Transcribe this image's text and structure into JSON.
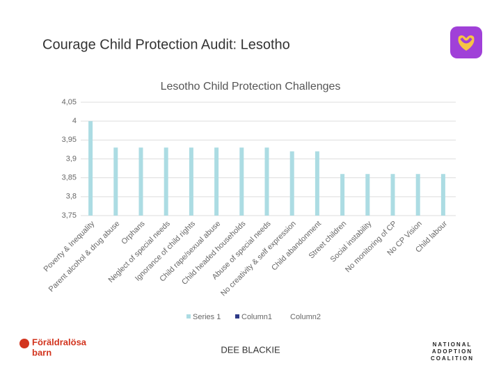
{
  "slide": {
    "title": "Courage Child Protection Audit: Lesotho",
    "footer": "DEE BLACKIE",
    "logo_left": [
      "Föräldralösa",
      "barn"
    ],
    "logo_right": [
      "NATIONAL",
      "ADOPTION",
      "COALITION"
    ]
  },
  "chart_data": {
    "type": "bar",
    "title": "Lesotho Child Protection Challenges",
    "categories": [
      "Poverty & Inequality",
      "Parent alcohol & drug abuse",
      "Orphans",
      "Neglect of special needs",
      "Ignorance of child rights",
      "Child rape/sexual abuse",
      "Child headed households",
      "Abuse of special needs",
      "No creativity & self expression",
      "Child abandonment",
      "Street children",
      "Social instability",
      "No monitoring of CP",
      "No CP Vision",
      "Child labour"
    ],
    "series": [
      {
        "name": "Series 1",
        "color": "#acdce3",
        "values": [
          4,
          3.93,
          3.93,
          3.93,
          3.93,
          3.93,
          3.93,
          3.93,
          3.92,
          3.92,
          3.86,
          3.86,
          3.86,
          3.86,
          3.86
        ]
      },
      {
        "name": "Column1",
        "color": "#2e3a87",
        "values": [
          null,
          null,
          null,
          null,
          null,
          null,
          null,
          null,
          null,
          null,
          null,
          null,
          null,
          null,
          null
        ]
      },
      {
        "name": "Column2",
        "color": "#ffffff",
        "values": [
          null,
          null,
          null,
          null,
          null,
          null,
          null,
          null,
          null,
          null,
          null,
          null,
          null,
          null,
          null
        ]
      }
    ],
    "ylim": [
      3.75,
      4.05
    ],
    "yticks": [
      {
        "value": 3.75,
        "label": "3,75"
      },
      {
        "value": 3.8,
        "label": "3,8"
      },
      {
        "value": 3.85,
        "label": "3,85"
      },
      {
        "value": 3.9,
        "label": "3,9"
      },
      {
        "value": 3.95,
        "label": "3,95"
      },
      4,
      {
        "value": 4.05,
        "label": "4,05"
      }
    ],
    "grid": true,
    "legend": "bottom"
  }
}
